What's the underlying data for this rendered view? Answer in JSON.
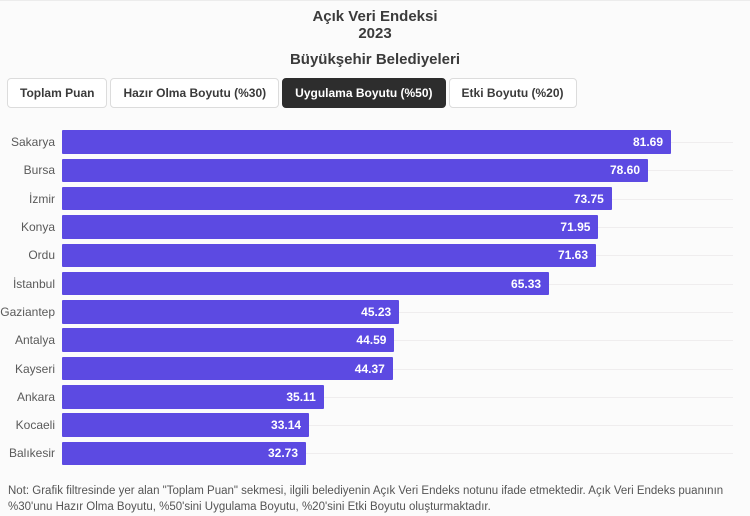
{
  "header": {
    "title_line1": "Açık Veri Endeksi",
    "title_line2": "2023",
    "subtitle": "Büyükşehir Belediyeleri"
  },
  "tabs": [
    {
      "label": "Toplam Puan",
      "active": false
    },
    {
      "label": "Hazır Olma Boyutu (%30)",
      "active": false
    },
    {
      "label": "Uygulama Boyutu (%50)",
      "active": true
    },
    {
      "label": "Etki Boyutu (%20)",
      "active": false
    }
  ],
  "chart_data": {
    "type": "bar",
    "orientation": "horizontal",
    "title": "Açık Veri Endeksi 2023 — Büyükşehir Belediyeleri",
    "categories": [
      "Sakarya",
      "Bursa",
      "İzmir",
      "Konya",
      "Ordu",
      "İstanbul",
      "Gaziantep",
      "Antalya",
      "Kayseri",
      "Ankara",
      "Kocaeli",
      "Balıkesir"
    ],
    "values": [
      81.69,
      78.6,
      73.75,
      71.95,
      71.63,
      65.33,
      45.23,
      44.59,
      44.37,
      35.11,
      33.14,
      32.73
    ],
    "value_labels": [
      "81.69",
      "78.60",
      "73.75",
      "71.95",
      "71.63",
      "65.33",
      "45.23",
      "44.59",
      "44.37",
      "35.11",
      "33.14",
      "32.73"
    ],
    "xlim": [
      0,
      90
    ],
    "grid": true,
    "legend": false,
    "bar_color": "#5c4ae2",
    "active_tab_color": "#2d2d2d",
    "gridline_color": "#efedee"
  },
  "note": "Not: Grafik filtresinde yer alan \"Toplam Puan\" sekmesi, ilgili belediyenin Açık Veri Endeks notunu ifade etmektedir. Açık Veri Endeks puanının %30'unu Hazır Olma Boyutu, %50'sini Uygulama Boyutu, %20'sini Etki Boyutu oluşturmaktadır."
}
